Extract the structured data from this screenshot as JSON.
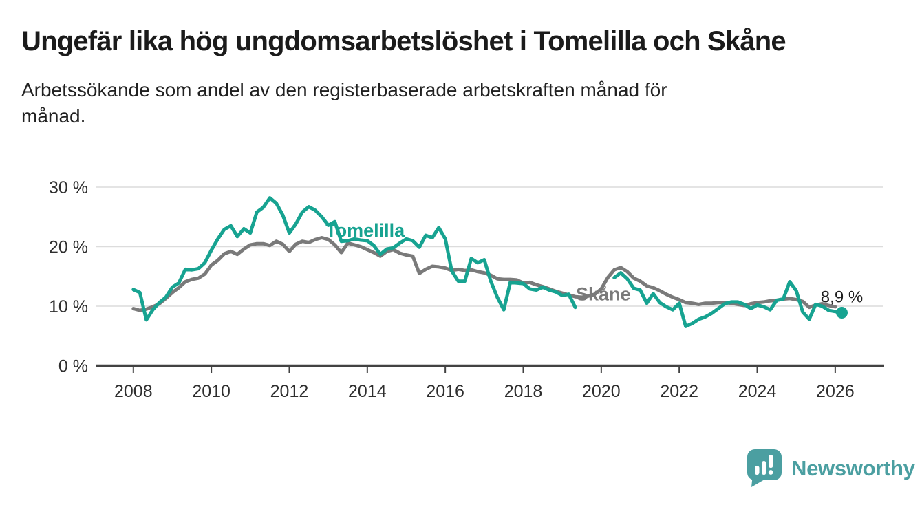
{
  "chart_data": {
    "type": "line",
    "title": "Ungefär lika hög ungdomsarbetslöshet i Tomelilla och Skåne",
    "subtitle_lines": [
      "Arbetssökande som andel av den registerbaserade arbetskraften månad för",
      "månad."
    ],
    "xlabel": "",
    "ylabel": "",
    "x_start": 2008.0,
    "x_step": 0.16667,
    "xlim": [
      2007.05,
      2027.2
    ],
    "ylim": [
      0,
      30
    ],
    "grid": true,
    "legend_position": "inline-labels",
    "x_ticks": [
      2008,
      2010,
      2012,
      2014,
      2016,
      2018,
      2020,
      2022,
      2024,
      2026
    ],
    "y_ticks": [
      {
        "value": 0,
        "label": "0 %"
      },
      {
        "value": 10,
        "label": "10 %"
      },
      {
        "value": 20,
        "label": "20 %"
      },
      {
        "value": 30,
        "label": "30 %"
      }
    ],
    "colors": {
      "grid": "#dcdcdc",
      "axis": "#424242",
      "tomelilla": "#17A391",
      "skane": "#7A7A7A"
    },
    "series": [
      {
        "id": "tomelilla",
        "name": "Tomelilla",
        "color": "#17A391",
        "values": [
          12.8,
          12.3,
          7.7,
          9.4,
          10.6,
          11.5,
          13.2,
          13.9,
          16.2,
          16.1,
          16.3,
          17.3,
          19.4,
          21.3,
          22.9,
          23.5,
          21.7,
          23.0,
          22.3,
          25.8,
          26.6,
          28.2,
          27.3,
          25.3,
          22.3,
          23.8,
          25.8,
          26.7,
          26.1,
          25.0,
          23.6,
          24.2,
          20.9,
          21.0,
          21.3,
          21.1,
          21.0,
          20.2,
          18.7,
          19.6,
          19.8,
          20.6,
          21.3,
          21.0,
          19.9,
          21.9,
          21.5,
          23.2,
          21.3,
          15.9,
          14.2,
          14.2,
          18.0,
          17.3,
          17.8,
          14.2,
          11.5,
          9.4,
          14.0,
          13.9,
          13.8,
          12.9,
          12.7,
          13.2,
          12.7,
          12.4,
          11.8,
          12.0,
          9.8,
          null,
          null,
          null,
          null,
          null,
          14.8,
          15.6,
          14.6,
          13.0,
          12.7,
          10.5,
          12.1,
          10.6,
          9.9,
          9.4,
          10.5,
          6.6,
          7.1,
          7.8,
          8.2,
          8.8,
          9.6,
          10.4,
          10.7,
          10.7,
          10.3,
          9.6,
          10.2,
          9.9,
          9.4,
          11.0,
          11.2,
          14.1,
          12.6,
          9.0,
          7.8,
          10.3,
          10.0,
          9.3,
          9.1,
          8.9
        ]
      },
      {
        "id": "skane",
        "name": "Skåne",
        "color": "#7A7A7A",
        "values": [
          9.6,
          9.3,
          9.5,
          9.9,
          10.4,
          11.3,
          12.3,
          13.1,
          14.1,
          14.5,
          14.7,
          15.4,
          16.9,
          17.7,
          18.8,
          19.2,
          18.7,
          19.6,
          20.3,
          20.5,
          20.5,
          20.2,
          20.9,
          20.4,
          19.2,
          20.4,
          20.9,
          20.7,
          21.2,
          21.5,
          21.2,
          20.3,
          19.0,
          20.6,
          20.3,
          20.0,
          19.5,
          19.0,
          18.4,
          19.2,
          19.5,
          18.9,
          18.6,
          18.4,
          15.5,
          16.2,
          16.7,
          16.6,
          16.4,
          16.0,
          16.2,
          16.0,
          16.1,
          15.8,
          15.6,
          15.2,
          14.6,
          14.5,
          14.5,
          14.4,
          13.9,
          14.0,
          13.6,
          13.3,
          12.9,
          12.5,
          12.2,
          11.9,
          11.6,
          11.5,
          11.7,
          12.0,
          12.9,
          14.8,
          16.1,
          16.5,
          15.8,
          14.7,
          14.2,
          13.4,
          13.1,
          12.6,
          12.0,
          11.5,
          11.1,
          10.6,
          10.5,
          10.3,
          10.5,
          10.5,
          10.6,
          10.6,
          10.5,
          10.3,
          10.1,
          10.4,
          10.6,
          10.7,
          10.9,
          11.0,
          11.2,
          11.3,
          11.1,
          10.8,
          9.8,
          10.2,
          10.4,
          10.1,
          9.9,
          null
        ]
      }
    ],
    "series_labels": [
      {
        "id": "tomelilla",
        "text": "Tomelilla",
        "year": 2012.93,
        "value": 21.7,
        "color": "#17A391"
      },
      {
        "id": "skane",
        "text": "Skåne",
        "year": 2019.35,
        "value": 11.0,
        "color": "#7A7A7A"
      }
    ],
    "end_dot": {
      "series": "tomelilla",
      "year": 2026.17,
      "value": 8.9,
      "color": "#17A391"
    },
    "end_annotation": {
      "text": "8,9 %",
      "year": 2026.17,
      "value": 8.9,
      "dx": 0,
      "dy": -15
    }
  },
  "footer": {
    "brand_name": "Newsworthy",
    "logo_icon": "newsworthy-chart-bubble-icon",
    "brand_color": "#4B9FA1"
  }
}
